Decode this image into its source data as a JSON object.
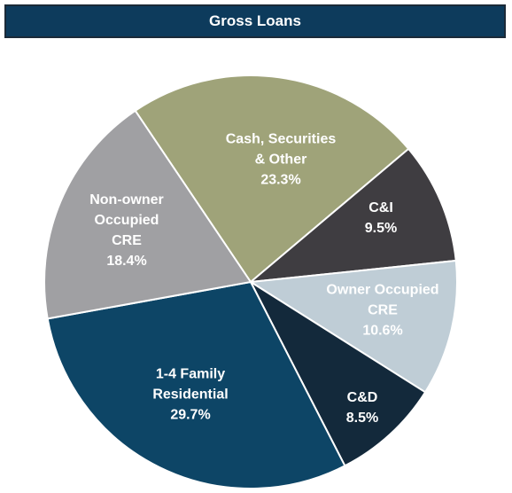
{
  "chart_data": {
    "type": "pie",
    "title": "Gross Loans",
    "categories": [
      "Cash, Securities & Other",
      "C&I",
      "Owner Occupied CRE",
      "C&D",
      "1-4 Family Residential",
      "Non-owner Occupied CRE"
    ],
    "values": [
      23.3,
      9.5,
      10.6,
      8.5,
      29.7,
      18.4
    ],
    "value_labels": [
      "23.3%",
      "9.5%",
      "10.6%",
      "8.5%",
      "29.7%",
      "18.4%"
    ],
    "colors": [
      "#9fa379",
      "#3f3d41",
      "#bfcdd6",
      "#13293b",
      "#0d4566",
      "#a0a0a3"
    ]
  }
}
